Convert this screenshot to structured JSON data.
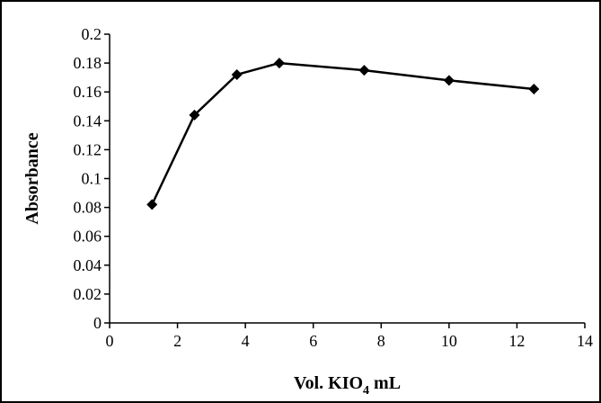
{
  "chart_data": {
    "type": "line",
    "xlabel": "Vol. KIO4 mL",
    "xlabel_parts": {
      "prefix": "Vol. KIO",
      "subscript": "4",
      "suffix": " mL"
    },
    "ylabel": "Absorbance",
    "xlim": [
      0,
      14
    ],
    "ylim": [
      0,
      0.2
    ],
    "x_ticks": [
      0,
      2,
      4,
      6,
      8,
      10,
      12,
      14
    ],
    "y_ticks": [
      0,
      0.02,
      0.04,
      0.06,
      0.08,
      0.1,
      0.12,
      0.14,
      0.16,
      0.18,
      0.2
    ],
    "x_tick_labels": [
      "0",
      "2",
      "4",
      "6",
      "8",
      "10",
      "12",
      "14"
    ],
    "y_tick_labels": [
      "0",
      "0.02",
      "0.04",
      "0.06",
      "0.08",
      "0.1",
      "0.12",
      "0.14",
      "0.16",
      "0.18",
      "0.2"
    ],
    "grid": false,
    "marker": "diamond",
    "series": [
      {
        "x": [
          1.25,
          2.5,
          3.75,
          5.0,
          7.5,
          10.0,
          12.5
        ],
        "y": [
          0.082,
          0.144,
          0.172,
          0.18,
          0.175,
          0.168,
          0.162
        ],
        "color": "#000000"
      }
    ]
  }
}
